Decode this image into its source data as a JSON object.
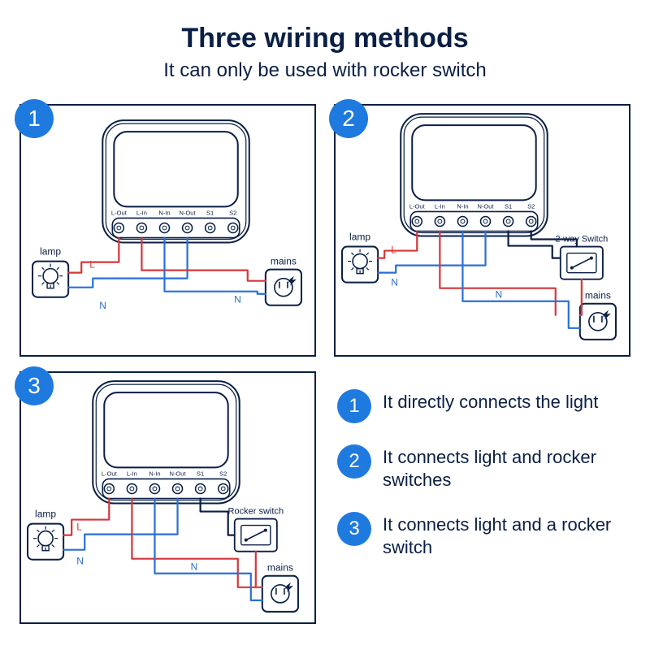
{
  "title": "Three  wiring  methods",
  "subtitle": "It can only  be used with rocker switch",
  "colors": {
    "stroke": "#0a1f44",
    "badge": "#1f7ae0",
    "wire_L": "#d4373a",
    "wire_N": "#2a6fd6",
    "bg": "#ffffff"
  },
  "module": {
    "terminal_labels": [
      "L-Out",
      "L-In",
      "N-In",
      "N-Out",
      "S1",
      "S2"
    ],
    "body_w": 180,
    "body_h": 150,
    "corner_r": 26,
    "screen_inset": 14,
    "terminal_count": 6
  },
  "diagrams": [
    {
      "n": 1,
      "lamp_label": "lamp",
      "mains_label": "mains",
      "wire_labels": {
        "L_top": "L",
        "N_top": "N",
        "N_bottom": "N"
      }
    },
    {
      "n": 2,
      "lamp_label": "lamp",
      "mains_label": "mains",
      "switch_label": "2-way Switch",
      "wire_labels": {
        "L": "L",
        "N": "N",
        "N2": "N"
      }
    },
    {
      "n": 3,
      "lamp_label": "lamp",
      "mains_label": "mains",
      "switch_label": "Rocker switch",
      "wire_labels": {
        "L": "L",
        "N": "N",
        "N2": "N"
      }
    }
  ],
  "legend": [
    {
      "n": 1,
      "text": "It directly connects the light"
    },
    {
      "n": 2,
      "text": "It connects light and rocker switches"
    },
    {
      "n": 3,
      "text": "It connects light and a rocker switch"
    }
  ]
}
